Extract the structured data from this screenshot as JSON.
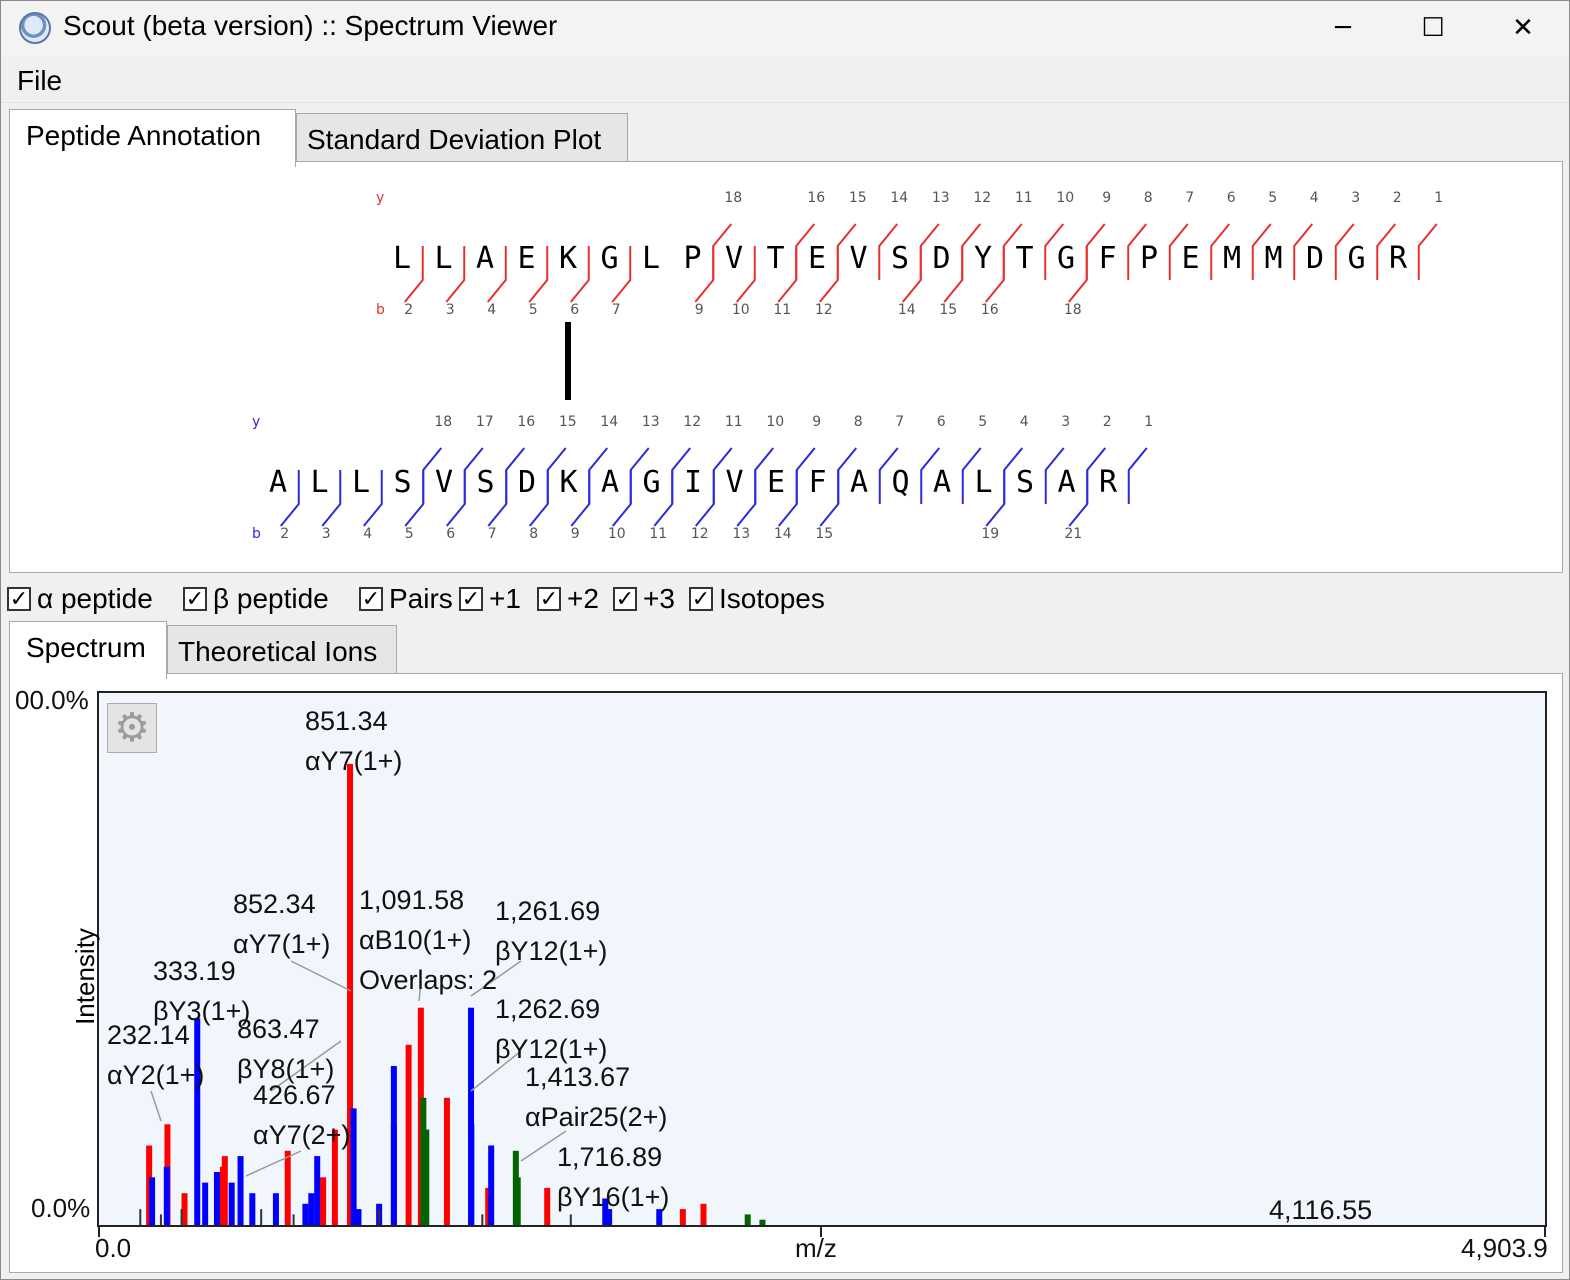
{
  "window": {
    "title": "Scout (beta version) :: Spectrum Viewer",
    "min": "─",
    "max": "☐",
    "close": "✕"
  },
  "menu": {
    "file": "File"
  },
  "top_tabs": [
    "Peptide Annotation",
    "Standard Deviation Plot"
  ],
  "alpha": {
    "y_label": "y",
    "b_label": "b",
    "sequence": [
      "L",
      "L",
      "A",
      "E",
      "K",
      "G",
      "L",
      "P",
      "V",
      "T",
      "E",
      "V",
      "S",
      "D",
      "Y",
      "T",
      "G",
      "F",
      "P",
      "E",
      "M",
      "M",
      "D",
      "G",
      "R"
    ],
    "y_numbers": [
      "18",
      "16",
      "15",
      "14",
      "13",
      "12",
      "11",
      "10",
      "9",
      "8",
      "7",
      "6",
      "5",
      "4",
      "3",
      "2",
      "1"
    ],
    "b_numbers": [
      "2",
      "3",
      "4",
      "5",
      "6",
      "7",
      "9",
      "10",
      "11",
      "12",
      "14",
      "15",
      "16",
      "18"
    ],
    "color": "#e8302f"
  },
  "beta": {
    "y_label": "y",
    "b_label": "b",
    "sequence": [
      "A",
      "L",
      "L",
      "S",
      "V",
      "S",
      "D",
      "K",
      "A",
      "G",
      "I",
      "V",
      "E",
      "F",
      "A",
      "Q",
      "A",
      "L",
      "S",
      "A",
      "R"
    ],
    "y_numbers": [
      "18",
      "17",
      "16",
      "15",
      "14",
      "13",
      "12",
      "11",
      "10",
      "9",
      "8",
      "7",
      "6",
      "5",
      "4",
      "3",
      "2",
      "1"
    ],
    "b_numbers": [
      "2",
      "3",
      "4",
      "5",
      "6",
      "7",
      "8",
      "9",
      "10",
      "11",
      "12",
      "13",
      "14",
      "15",
      "19",
      "21"
    ],
    "color": "#2b2bdc"
  },
  "options": [
    "α peptide",
    "β peptide",
    "Pairs",
    "+1",
    "+2",
    "+3",
    "Isotopes"
  ],
  "bottom_tabs": [
    "Spectrum",
    "Theoretical Ions"
  ],
  "plot": {
    "y_top": "00.0%",
    "y_bottom": "0.0%",
    "y_axis": "Intensity",
    "x_axis": "m/z",
    "x_min": "0.0",
    "x_max": "4,903.9",
    "x_extra": "4,116.55",
    "gear_icon": "⚙"
  },
  "chart_data": {
    "type": "bar",
    "title": "",
    "xlabel": "m/z",
    "ylabel": "Intensity",
    "xlim": [
      0.0,
      4903.9
    ],
    "series": [
      {
        "name": "alpha",
        "color": "#ff0000",
        "peaks": [
          [
            170,
            15
          ],
          [
            232.14,
            19
          ],
          [
            290,
            6
          ],
          [
            420,
            11
          ],
          [
            426.67,
            13
          ],
          [
            640,
            14
          ],
          [
            760,
            9
          ],
          [
            800,
            18
          ],
          [
            851.34,
            87
          ],
          [
            852.34,
            12
          ],
          [
            1000,
            19
          ],
          [
            1050,
            34
          ],
          [
            1091.58,
            41
          ],
          [
            1180,
            24
          ],
          [
            1320,
            7
          ],
          [
            1520,
            7
          ],
          [
            1980,
            3
          ],
          [
            2050,
            4
          ]
        ]
      },
      {
        "name": "beta",
        "color": "#0000ff",
        "peaks": [
          [
            180,
            9
          ],
          [
            230,
            11
          ],
          [
            333.19,
            39
          ],
          [
            360,
            8
          ],
          [
            400,
            10
          ],
          [
            450,
            8
          ],
          [
            480,
            13
          ],
          [
            520,
            6
          ],
          [
            600,
            6
          ],
          [
            700,
            4
          ],
          [
            720,
            6
          ],
          [
            740,
            13
          ],
          [
            863.47,
            22
          ],
          [
            880,
            3
          ],
          [
            950,
            4
          ],
          [
            1000,
            30
          ],
          [
            1261.69,
            41
          ],
          [
            1262.69,
            19
          ],
          [
            1330,
            15
          ],
          [
            1716.89,
            5
          ],
          [
            1730,
            3
          ],
          [
            1900,
            3
          ]
        ]
      },
      {
        "name": "pairs",
        "color": "#006400",
        "peaks": [
          [
            1100,
            24
          ],
          [
            1110,
            18
          ],
          [
            1413.67,
            14
          ],
          [
            1420,
            9
          ],
          [
            2200,
            2
          ],
          [
            2250,
            1
          ]
        ]
      },
      {
        "name": "other",
        "color": "#333333",
        "peaks": [
          [
            140,
            3
          ],
          [
            210,
            2
          ],
          [
            280,
            3
          ],
          [
            550,
            3
          ],
          [
            660,
            2
          ],
          [
            950,
            3
          ],
          [
            1300,
            2
          ],
          [
            1600,
            2
          ]
        ]
      }
    ],
    "annotations": [
      {
        "mz": "851.34",
        "ion": "αY7(1+)"
      },
      {
        "mz": "852.34",
        "ion": "αY7(1+)"
      },
      {
        "mz": "1,091.58",
        "ion": "αB10(1+)",
        "extra": "Overlaps: 2"
      },
      {
        "mz": "1,261.69",
        "ion": "βY12(1+)"
      },
      {
        "mz": "333.19",
        "ion": "βY3(1+)"
      },
      {
        "mz": "863.47",
        "ion": "βY8(1+)"
      },
      {
        "mz": "232.14",
        "ion": "αY2(1+)"
      },
      {
        "mz": "1,262.69",
        "ion": "βY12(1+)"
      },
      {
        "mz": "426.67",
        "ion": "αY7(2+)"
      },
      {
        "mz": "1,413.67",
        "ion": "αPair25(2+)"
      },
      {
        "mz": "1,716.89",
        "ion": "βY16(1+)"
      }
    ]
  }
}
